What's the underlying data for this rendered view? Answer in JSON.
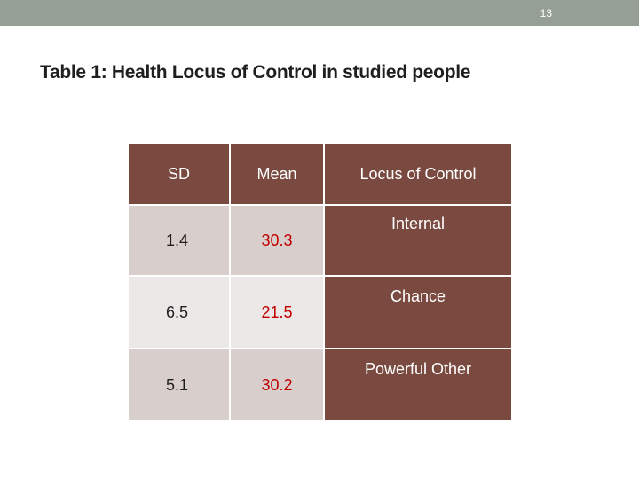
{
  "slide": {
    "number": "13",
    "title": "Table 1: Health Locus of Control in studied people"
  },
  "table": {
    "headers": [
      "SD",
      "Mean",
      "Locus of Control"
    ],
    "rows": [
      {
        "sd": "1.4",
        "mean": "30.3",
        "locus": "Internal"
      },
      {
        "sd": "6.5",
        "mean": "21.5",
        "locus": "Chance"
      },
      {
        "sd": "5.1",
        "mean": "30.2",
        "locus": "Powerful Other"
      }
    ]
  },
  "colors": {
    "top_bar": "#959f95",
    "header_bg": "#7a4a40",
    "mean_text": "#c00000",
    "row_dark": "#d8cfcc",
    "row_light": "#ece8e7"
  }
}
